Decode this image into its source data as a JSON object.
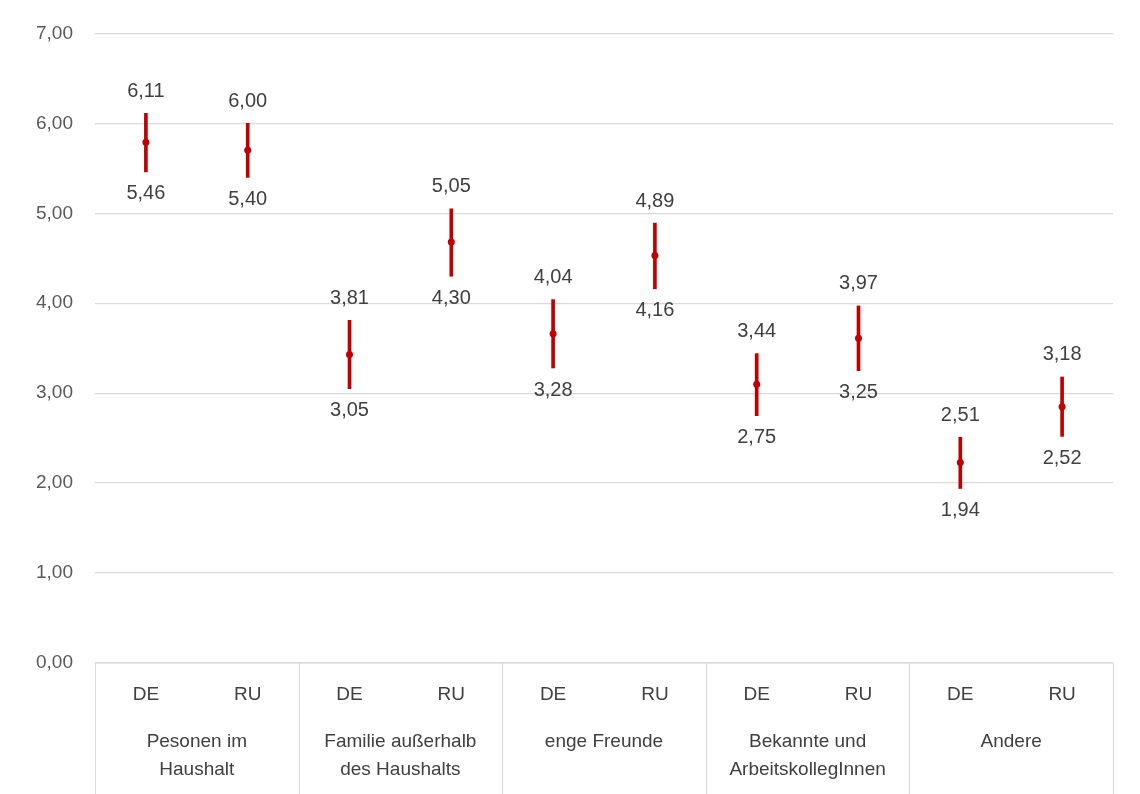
{
  "chart_data": {
    "type": "bar",
    "categories": [
      "DE",
      "RU",
      "DE",
      "RU",
      "DE",
      "RU",
      "DE",
      "RU",
      "DE",
      "RU"
    ],
    "series": [
      {
        "color": "#c00000",
        "base": [
          5.46,
          5.4,
          3.05,
          4.3,
          3.28,
          4.16,
          2.75,
          3.25,
          1.94,
          2.52
        ],
        "values": [
          0.65,
          0.6,
          0.76,
          0.75,
          0.76,
          0.73,
          0.69,
          0.72,
          0.57,
          0.66
        ]
      },
      {
        "type": "scatter",
        "color": "#c00000",
        "values": [
          5.79,
          5.7,
          3.43,
          4.68,
          3.66,
          4.53,
          3.1,
          3.61,
          2.23,
          2.85
        ]
      }
    ],
    "marker": "circle",
    "grid": "y",
    "ylim": [
      0,
      7
    ],
    "yticks": [
      {
        "value": 0,
        "label": "0,00"
      },
      {
        "value": 1,
        "label": "1,00"
      },
      {
        "value": 2,
        "label": "2,00"
      },
      {
        "value": 3,
        "label": "3,00"
      },
      {
        "value": 4,
        "label": "4,00"
      },
      {
        "value": 5,
        "label": "5,00"
      },
      {
        "value": 6,
        "label": "6,00"
      },
      {
        "value": 7,
        "label": "7,00"
      }
    ],
    "annotations": [
      "Pesonen im Haushalt",
      "Familie außerhalb des Haushalts",
      "enge Freunde",
      "Bekannte und ArbeitskollegInnen",
      "Andere",
      "5,46",
      "6,11",
      "5,40",
      "6,00",
      "3,05",
      "3,81",
      "4,30",
      "5,05",
      "3,28",
      "4,04",
      "4,16",
      "4,89",
      "2,75",
      "3,44",
      "3,25",
      "3,97",
      "1,94",
      "2,51",
      "2,52",
      "3,18"
    ]
  }
}
